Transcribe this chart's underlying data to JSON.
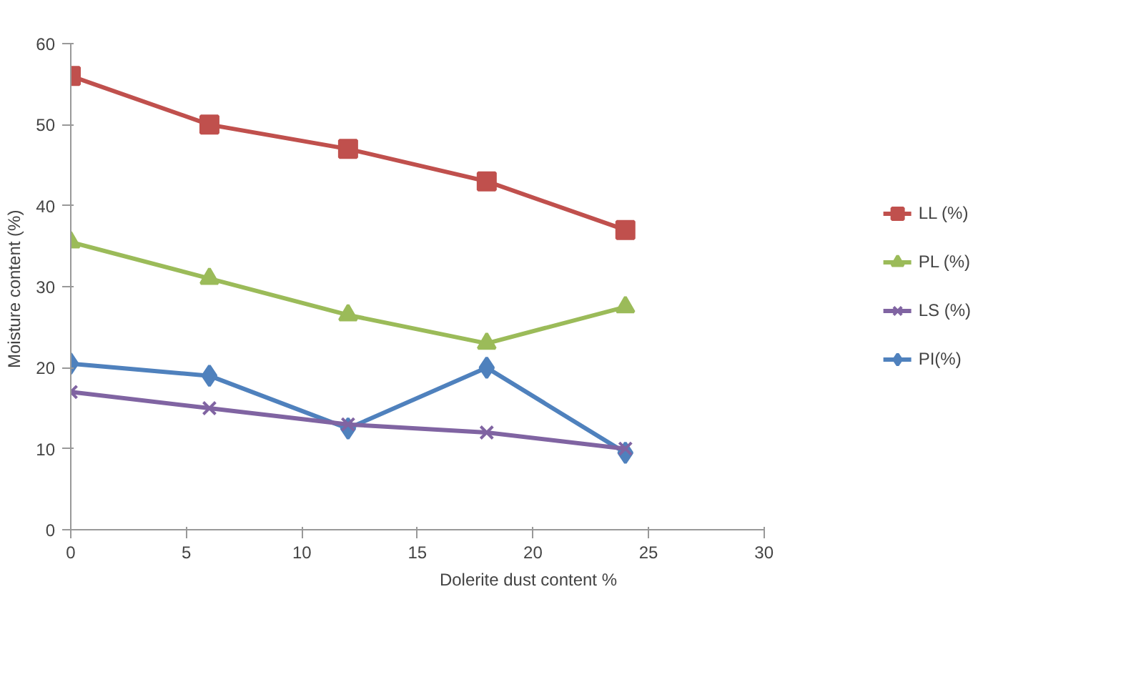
{
  "chart_data": {
    "type": "line",
    "xlabel": "Dolerite dust content %",
    "ylabel": "Moisture content  (%)",
    "x": [
      0,
      6,
      12,
      18,
      24
    ],
    "series": [
      {
        "name": "LL (%)",
        "color": "#c0504d",
        "marker": "square",
        "values": [
          56,
          50,
          47,
          43,
          37
        ]
      },
      {
        "name": "PL (%)",
        "color": "#9bbb59",
        "marker": "triangle",
        "values": [
          35.5,
          31,
          26.5,
          23,
          27.5
        ]
      },
      {
        "name": "LS (%)",
        "color": "#8064a2",
        "marker": "cross",
        "values": [
          17,
          15,
          13,
          12,
          10
        ]
      },
      {
        "name": "PI(%)",
        "color": "#4f81bd",
        "marker": "diamond",
        "values": [
          20.5,
          19,
          12.5,
          20,
          9.5
        ]
      }
    ],
    "xlim": [
      0,
      30
    ],
    "xticks": [
      0,
      5,
      10,
      15,
      20,
      25,
      30
    ],
    "ylim": [
      0,
      60
    ],
    "yticks": [
      0,
      10,
      20,
      30,
      40,
      50,
      60
    ],
    "grid": false,
    "legend": "right"
  }
}
